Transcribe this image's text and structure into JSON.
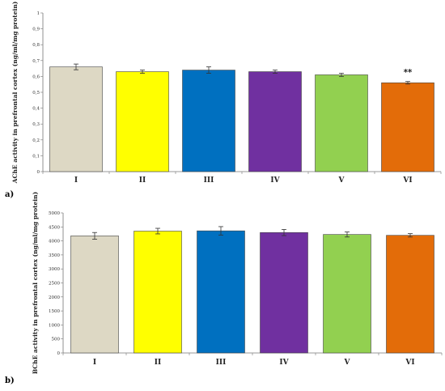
{
  "chart_data": [
    {
      "type": "bar",
      "panel_label": "a)",
      "categories": [
        "I",
        "II",
        "III",
        "IV",
        "V",
        "VI"
      ],
      "values": [
        0.66,
        0.63,
        0.64,
        0.63,
        0.61,
        0.56
      ],
      "errors": [
        0.018,
        0.01,
        0.02,
        0.01,
        0.01,
        0.008
      ],
      "colors": [
        "#ddd8c4",
        "#ffff00",
        "#0070c0",
        "#7030a0",
        "#92d050",
        "#e36c09"
      ],
      "ylabel": "AChE activity in prefrontal cortex (ng/ml/mg protein)",
      "ylim": [
        0,
        1
      ],
      "yticks": [
        "0",
        "0,1",
        "0,2",
        "0,3",
        "0,4",
        "0,5",
        "0,6",
        "0,7",
        "0,8",
        "0,9",
        "1"
      ],
      "annotations": [
        {
          "category": "VI",
          "text": "**"
        }
      ],
      "grid": false
    },
    {
      "type": "bar",
      "panel_label": "b)",
      "categories": [
        "I",
        "II",
        "III",
        "IV",
        "V",
        "VI"
      ],
      "values": [
        4180,
        4350,
        4360,
        4300,
        4230,
        4200
      ],
      "errors": [
        120,
        100,
        150,
        110,
        90,
        60
      ],
      "colors": [
        "#ddd8c4",
        "#ffff00",
        "#0070c0",
        "#7030a0",
        "#92d050",
        "#e36c09"
      ],
      "ylabel": "BChE activity in prefrontal cortex (ng/ml/mg protein)",
      "ylim": [
        0,
        5000
      ],
      "yticks": [
        "0",
        "500",
        "1000",
        "1500",
        "2000",
        "2500",
        "3000",
        "3500",
        "4000",
        "4500",
        "5000"
      ],
      "grid": false
    }
  ]
}
